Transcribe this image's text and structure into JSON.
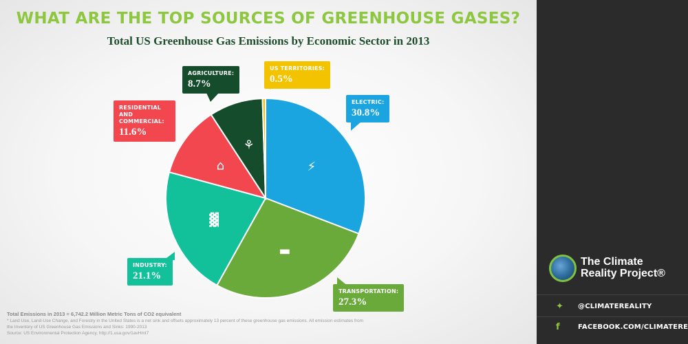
{
  "title": "WHAT ARE THE TOP SOURCES OF GREENHOUSE GASES?",
  "subtitle": "Total US Greenhouse Gas Emissions by Economic Sector in 2013",
  "chart_data": {
    "type": "pie",
    "title": "Total US Greenhouse Gas Emissions by Economic Sector in 2013",
    "slices": [
      {
        "label": "ELECTRIC:",
        "value": 30.8,
        "display": "30.8%",
        "color": "#1ba5e0",
        "icon": "lightning-icon"
      },
      {
        "label": "TRANSPORTATION:",
        "value": 27.3,
        "display": "27.3%",
        "color": "#6aaa3a",
        "icon": "car-icon"
      },
      {
        "label": "INDUSTRY:",
        "value": 21.1,
        "display": "21.1%",
        "color": "#12c09a",
        "icon": "factory-icon"
      },
      {
        "label": "RESIDENTIAL AND COMMERCIAL:",
        "value": 11.6,
        "display": "11.6%",
        "color": "#f2474f",
        "icon": "house-icon"
      },
      {
        "label": "AGRICULTURE:",
        "value": 8.7,
        "display": "8.7%",
        "color": "#154c2c",
        "icon": "wheat-icon"
      },
      {
        "label": "US TERRITORIES:",
        "value": 0.5,
        "display": "0.5%",
        "color": "#f4c300",
        "icon": ""
      }
    ]
  },
  "notes": {
    "total": "Total Emissions in 2013 = 6,742.2 Million Metric Tons of CO2 equivalent",
    "footnote": "* Land Use, Land-Use Change, and Forestry in the United States is a net sink and offsets approximately 13 percent of these greenhouse gas emissions. All emission estimates from the Inventory of US Greenhouse Gas Emissions and Sinks: 1990-2013",
    "source": "Source: US Environmental Protection Agency, http://1.usa.gov/1avHmt7"
  },
  "sidebar": {
    "brand_line1": "The Climate",
    "brand_line2": "Reality Project",
    "brand_mark": "®",
    "twitter": "@CLIMATEREALITY",
    "facebook": "FACEBOOK.COM/CLIMATEREALITY",
    "colors": {
      "accent": "#8dc63f",
      "background": "#2b2b2b"
    }
  }
}
